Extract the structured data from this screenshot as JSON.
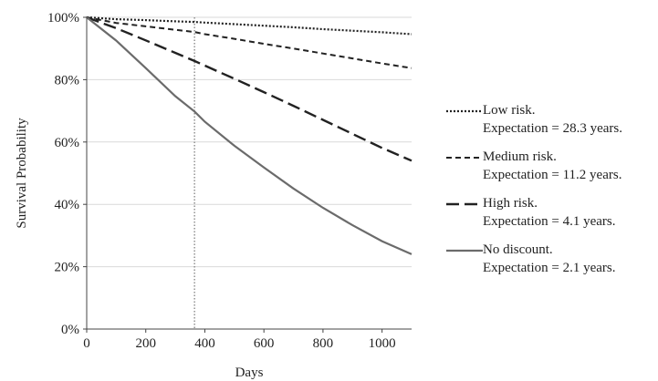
{
  "chart_data": {
    "type": "line",
    "title": "",
    "xlabel": "Days",
    "ylabel": "Survival Probability",
    "xlim": [
      0,
      1100
    ],
    "ylim": [
      0,
      100
    ],
    "x_ticks": [
      0,
      200,
      400,
      600,
      800,
      1000
    ],
    "y_ticks": [
      0,
      20,
      40,
      60,
      80,
      100
    ],
    "x_tick_labels": [
      "0",
      "200",
      "400",
      "600",
      "800",
      "1000"
    ],
    "y_tick_labels": [
      "0%",
      "20%",
      "40%",
      "60%",
      "80%",
      "100%"
    ],
    "grid": "horizontal",
    "legend_position": "right",
    "reference_line": {
      "x": 365,
      "style": "dotted",
      "color": "#777777"
    },
    "x": [
      0,
      100,
      200,
      300,
      365,
      400,
      500,
      600,
      700,
      800,
      900,
      1000,
      1100
    ],
    "series": [
      {
        "name": "Low risk.",
        "expectation": "Expectation = 28.3 years.",
        "dash": "dotted",
        "color": "#222222",
        "values": [
          100,
          99.4,
          99.1,
          98.7,
          98.5,
          98.3,
          97.8,
          97.3,
          96.8,
          96.2,
          95.7,
          95.2,
          94.6
        ]
      },
      {
        "name": "Medium risk.",
        "expectation": "Expectation = 11.2 years.",
        "dash": "short-dash",
        "color": "#222222",
        "values": [
          100,
          98.2,
          97.1,
          96.0,
          95.3,
          94.6,
          93.1,
          91.5,
          90.0,
          88.4,
          86.8,
          85.2,
          83.7
        ]
      },
      {
        "name": "High risk.",
        "expectation": "Expectation = 4.1 years.",
        "dash": "long-dash",
        "color": "#222222",
        "values": [
          100,
          96.5,
          92.6,
          88.6,
          86.0,
          84.5,
          80.3,
          76.0,
          71.6,
          67.1,
          62.6,
          58.1,
          54.0
        ]
      },
      {
        "name": "No discount.",
        "expectation": "Expectation = 2.1 years.",
        "dash": "solid",
        "color": "#6b6b6b",
        "values": [
          100,
          92.5,
          83.7,
          74.7,
          69.8,
          66.5,
          58.8,
          51.8,
          45.1,
          38.9,
          33.3,
          28.2,
          24.0
        ]
      }
    ]
  }
}
